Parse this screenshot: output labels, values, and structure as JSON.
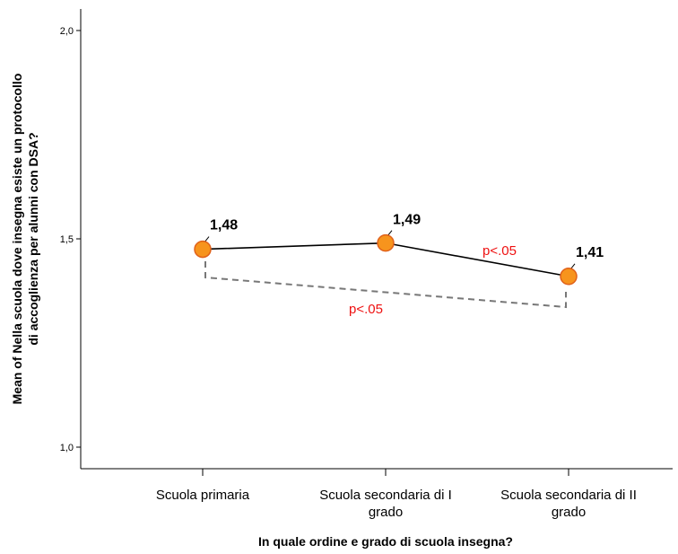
{
  "chart_data": {
    "type": "line",
    "xlabel": "In quale ordine e grado di scuola insegna?",
    "ylabel_lines": [
      "Mean of Nella scuola dove insegna esiste un protocollo",
      "di accoglienza per alunni con DSA?"
    ],
    "categories": [
      [
        "Scuola primaria"
      ],
      [
        "Scuola secondaria di I",
        "grado"
      ],
      [
        "Scuola secondaria di II",
        "grado"
      ]
    ],
    "values": [
      1.475,
      1.49,
      1.41
    ],
    "data_labels": [
      "1,48",
      "1,49",
      "1,41"
    ],
    "ylim": [
      1.0,
      2.0
    ],
    "yticks": [
      1.0,
      1.5,
      2.0
    ],
    "ytick_labels": [
      "1,0",
      "1,5",
      "2,0"
    ],
    "grid": false,
    "colors": {
      "line": "#000000",
      "marker_fill": "#f7941d",
      "marker_stroke": "#e0611a",
      "significance": "#ee1111",
      "bracket": "#777777"
    },
    "annotations": [
      {
        "text": "p<.05",
        "between": [
          1,
          2
        ],
        "style": "label"
      },
      {
        "text": "p<.05",
        "between": [
          0,
          2
        ],
        "style": "dashed-bracket"
      }
    ]
  }
}
